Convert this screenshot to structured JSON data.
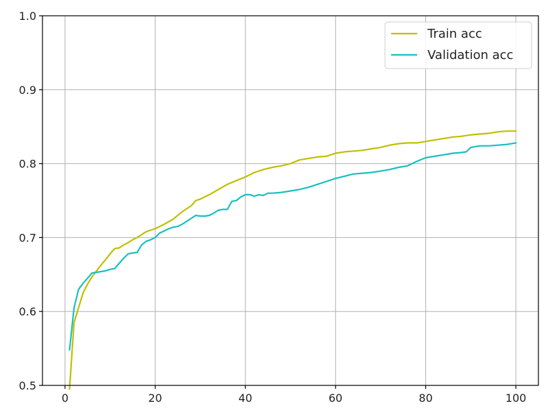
{
  "chart_data": {
    "type": "line",
    "title": "",
    "xlabel": "",
    "ylabel": "",
    "xlim": [
      -5,
      105
    ],
    "ylim": [
      0.5,
      1.0
    ],
    "x_ticks": [
      0,
      20,
      40,
      60,
      80,
      100
    ],
    "y_ticks": [
      0.5,
      0.6,
      0.7,
      0.8,
      0.9,
      1.0
    ],
    "x_tick_labels": [
      "0",
      "20",
      "40",
      "60",
      "80",
      "100"
    ],
    "y_tick_labels": [
      "0.5",
      "0.6",
      "0.7",
      "0.8",
      "0.9",
      "1.0"
    ],
    "grid": true,
    "legend_position": "top-right",
    "series": [
      {
        "name": "Train acc",
        "color": "#bfbf00",
        "points": [
          [
            1,
            0.495
          ],
          [
            2,
            0.585
          ],
          [
            3,
            0.605
          ],
          [
            4,
            0.625
          ],
          [
            5,
            0.637
          ],
          [
            6,
            0.647
          ],
          [
            7,
            0.655
          ],
          [
            8,
            0.663
          ],
          [
            9,
            0.67
          ],
          [
            10,
            0.678
          ],
          [
            11,
            0.685
          ],
          [
            12,
            0.686
          ],
          [
            13,
            0.69
          ],
          [
            14,
            0.693
          ],
          [
            15,
            0.697
          ],
          [
            16,
            0.7
          ],
          [
            17,
            0.704
          ],
          [
            18,
            0.708
          ],
          [
            20,
            0.712
          ],
          [
            22,
            0.718
          ],
          [
            24,
            0.725
          ],
          [
            26,
            0.735
          ],
          [
            28,
            0.743
          ],
          [
            29,
            0.75
          ],
          [
            30,
            0.752
          ],
          [
            32,
            0.758
          ],
          [
            34,
            0.765
          ],
          [
            36,
            0.772
          ],
          [
            38,
            0.777
          ],
          [
            40,
            0.782
          ],
          [
            42,
            0.788
          ],
          [
            44,
            0.792
          ],
          [
            46,
            0.795
          ],
          [
            48,
            0.797
          ],
          [
            50,
            0.8
          ],
          [
            52,
            0.805
          ],
          [
            54,
            0.807
          ],
          [
            56,
            0.809
          ],
          [
            58,
            0.81
          ],
          [
            60,
            0.814
          ],
          [
            62,
            0.816
          ],
          [
            64,
            0.817
          ],
          [
            66,
            0.818
          ],
          [
            68,
            0.82
          ],
          [
            70,
            0.822
          ],
          [
            72,
            0.825
          ],
          [
            74,
            0.827
          ],
          [
            76,
            0.828
          ],
          [
            78,
            0.828
          ],
          [
            80,
            0.83
          ],
          [
            82,
            0.832
          ],
          [
            84,
            0.834
          ],
          [
            86,
            0.836
          ],
          [
            88,
            0.837
          ],
          [
            90,
            0.839
          ],
          [
            92,
            0.84
          ],
          [
            94,
            0.841
          ],
          [
            96,
            0.843
          ],
          [
            98,
            0.844
          ],
          [
            100,
            0.844
          ]
        ]
      },
      {
        "name": "Validation acc",
        "color": "#17bfbf",
        "points": [
          [
            1,
            0.548
          ],
          [
            2,
            0.605
          ],
          [
            3,
            0.63
          ],
          [
            4,
            0.638
          ],
          [
            5,
            0.645
          ],
          [
            6,
            0.652
          ],
          [
            7,
            0.653
          ],
          [
            8,
            0.654
          ],
          [
            9,
            0.655
          ],
          [
            10,
            0.657
          ],
          [
            11,
            0.658
          ],
          [
            12,
            0.665
          ],
          [
            13,
            0.672
          ],
          [
            14,
            0.678
          ],
          [
            15,
            0.679
          ],
          [
            16,
            0.68
          ],
          [
            17,
            0.69
          ],
          [
            18,
            0.695
          ],
          [
            19,
            0.697
          ],
          [
            20,
            0.7
          ],
          [
            21,
            0.706
          ],
          [
            22,
            0.709
          ],
          [
            23,
            0.712
          ],
          [
            24,
            0.714
          ],
          [
            25,
            0.715
          ],
          [
            26,
            0.718
          ],
          [
            27,
            0.722
          ],
          [
            28,
            0.726
          ],
          [
            29,
            0.73
          ],
          [
            30,
            0.729
          ],
          [
            31,
            0.729
          ],
          [
            32,
            0.73
          ],
          [
            33,
            0.733
          ],
          [
            34,
            0.737
          ],
          [
            35,
            0.738
          ],
          [
            36,
            0.738
          ],
          [
            37,
            0.749
          ],
          [
            38,
            0.75
          ],
          [
            39,
            0.755
          ],
          [
            40,
            0.758
          ],
          [
            41,
            0.758
          ],
          [
            42,
            0.756
          ],
          [
            43,
            0.758
          ],
          [
            44,
            0.757
          ],
          [
            45,
            0.76
          ],
          [
            46,
            0.76
          ],
          [
            48,
            0.761
          ],
          [
            50,
            0.763
          ],
          [
            52,
            0.765
          ],
          [
            54,
            0.768
          ],
          [
            56,
            0.772
          ],
          [
            58,
            0.776
          ],
          [
            60,
            0.78
          ],
          [
            62,
            0.783
          ],
          [
            64,
            0.786
          ],
          [
            66,
            0.787
          ],
          [
            68,
            0.788
          ],
          [
            70,
            0.79
          ],
          [
            72,
            0.792
          ],
          [
            74,
            0.795
          ],
          [
            76,
            0.797
          ],
          [
            78,
            0.803
          ],
          [
            80,
            0.808
          ],
          [
            82,
            0.81
          ],
          [
            84,
            0.812
          ],
          [
            86,
            0.814
          ],
          [
            88,
            0.815
          ],
          [
            89,
            0.816
          ],
          [
            90,
            0.822
          ],
          [
            92,
            0.824
          ],
          [
            94,
            0.824
          ],
          [
            96,
            0.825
          ],
          [
            98,
            0.826
          ],
          [
            100,
            0.828
          ]
        ]
      }
    ]
  }
}
